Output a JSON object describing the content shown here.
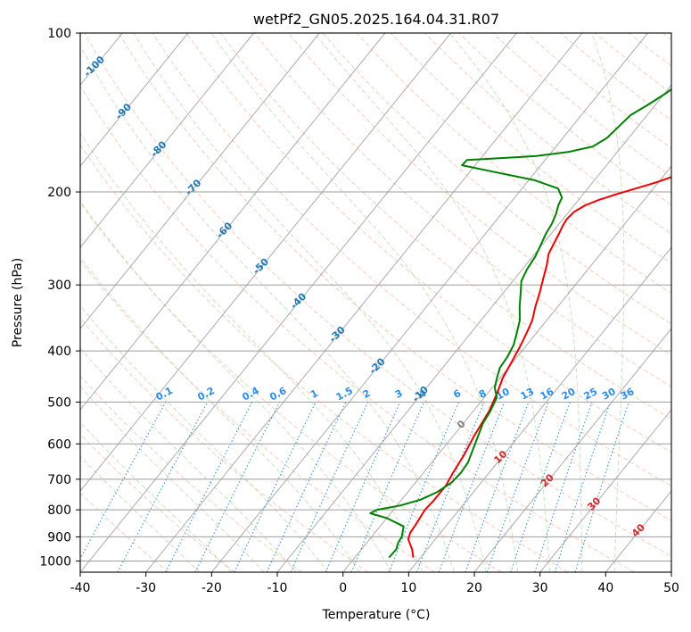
{
  "chart_data": {
    "type": "line",
    "title": "wetPf2_GN05.2025.164.04.31.R07",
    "xlabel": "Temperature (°C)",
    "ylabel": "Pressure (hPa)",
    "xlim": [
      -40,
      50
    ],
    "ylim": [
      1050,
      100
    ],
    "y_scale": "log",
    "skew": "skew-T log-P",
    "grid": true,
    "x_ticks": [
      "-40",
      "-30",
      "-20",
      "-10",
      "0",
      "10",
      "20",
      "30",
      "40",
      "50"
    ],
    "y_ticks": [
      "100",
      "200",
      "300",
      "400",
      "500",
      "600",
      "700",
      "800",
      "900",
      "1000"
    ],
    "series": [
      {
        "color": "#ee0000",
        "points": [
          [
            8.9,
            985
          ],
          [
            7.7,
            950
          ],
          [
            5.9,
            910
          ],
          [
            5.4,
            885
          ],
          [
            5.2,
            850
          ],
          [
            4.8,
            800
          ],
          [
            5.0,
            770
          ],
          [
            5.0,
            720
          ],
          [
            4.5,
            680
          ],
          [
            4.0,
            630
          ],
          [
            3.2,
            580
          ],
          [
            2.4,
            520
          ],
          [
            1.4,
            480
          ],
          [
            0.4,
            450
          ],
          [
            -0.2,
            420
          ],
          [
            -0.9,
            390
          ],
          [
            -1.5,
            370
          ],
          [
            -2.2,
            350
          ],
          [
            -3.4,
            330
          ],
          [
            -4.5,
            310
          ],
          [
            -5.8,
            290
          ],
          [
            -6.8,
            275
          ],
          [
            -7.9,
            262
          ],
          [
            -8.4,
            250
          ],
          [
            -8.8,
            240
          ],
          [
            -9.2,
            232
          ],
          [
            -9.4,
            225
          ],
          [
            -9.2,
            218
          ],
          [
            -8.3,
            212
          ],
          [
            -6.9,
            207
          ],
          [
            -4.9,
            202
          ],
          [
            -2.7,
            197
          ],
          [
            -0.4,
            192
          ],
          [
            1.5,
            187
          ],
          [
            3.0,
            182
          ],
          [
            4.1,
            175
          ],
          [
            5.1,
            165
          ],
          [
            6.1,
            155
          ],
          [
            7.3,
            145
          ],
          [
            9.1,
            135
          ],
          [
            12.0,
            127
          ],
          [
            15.0,
            121
          ],
          [
            17.5,
            116
          ],
          [
            19.6,
            111
          ],
          [
            21.2,
            107
          ],
          [
            22.5,
            104
          ],
          [
            23.3,
            100
          ]
        ]
      },
      {
        "color": "#008000",
        "points": [
          [
            5.2,
            985
          ],
          [
            5.3,
            950
          ],
          [
            4.8,
            925
          ],
          [
            4.6,
            900
          ],
          [
            3.6,
            860
          ],
          [
            0.1,
            830
          ],
          [
            -3.1,
            812
          ],
          [
            -2.5,
            800
          ],
          [
            0.5,
            785
          ],
          [
            2.9,
            765
          ],
          [
            4.5,
            740
          ],
          [
            5.5,
            710
          ],
          [
            5.7,
            680
          ],
          [
            5.5,
            650
          ],
          [
            4.8,
            620
          ],
          [
            3.8,
            580
          ],
          [
            3.0,
            550
          ],
          [
            2.6,
            520
          ],
          [
            1.9,
            490
          ],
          [
            0.4,
            470
          ],
          [
            -0.5,
            450
          ],
          [
            -1.3,
            430
          ],
          [
            -1.5,
            410
          ],
          [
            -2.0,
            390
          ],
          [
            -3.0,
            370
          ],
          [
            -4.1,
            350
          ],
          [
            -5.8,
            330
          ],
          [
            -7.4,
            310
          ],
          [
            -8.7,
            295
          ],
          [
            -9.3,
            280
          ],
          [
            -9.6,
            265
          ],
          [
            -10.3,
            250
          ],
          [
            -10.8,
            240
          ],
          [
            -11.1,
            230
          ],
          [
            -11.7,
            220
          ],
          [
            -12.4,
            212
          ],
          [
            -12.8,
            205
          ],
          [
            -14.5,
            197
          ],
          [
            -19.1,
            190
          ],
          [
            -26.6,
            183
          ],
          [
            -32.0,
            178
          ],
          [
            -31.9,
            174
          ],
          [
            -24.9,
            172
          ],
          [
            -21.8,
            171
          ],
          [
            -17.5,
            168
          ],
          [
            -14.4,
            164
          ],
          [
            -13.3,
            158
          ],
          [
            -12.9,
            150
          ],
          [
            -12.5,
            143
          ],
          [
            -11.2,
            137
          ],
          [
            -9.8,
            130
          ],
          [
            -8.8,
            123
          ],
          [
            -8.3,
            117
          ],
          [
            -7.4,
            113
          ],
          [
            -6.1,
            111
          ],
          [
            -4.6,
            109
          ],
          [
            -2.3,
            105
          ],
          [
            -0.4,
            101
          ],
          [
            0.2,
            100
          ]
        ]
      }
    ],
    "dry_adiabat_labels": [
      "-100",
      "-90",
      "-80",
      "-70",
      "-60",
      "-50",
      "-40",
      "-30",
      "-20",
      "-10",
      "0",
      "10",
      "20",
      "30",
      "40"
    ],
    "mixing_ratio_labels": [
      "0.1",
      "0.2",
      "0.4",
      "0.6",
      "1",
      "1.5",
      "2",
      "3",
      "4",
      "6",
      "8",
      "10",
      "13",
      "16",
      "20",
      "25",
      "30",
      "36"
    ]
  }
}
